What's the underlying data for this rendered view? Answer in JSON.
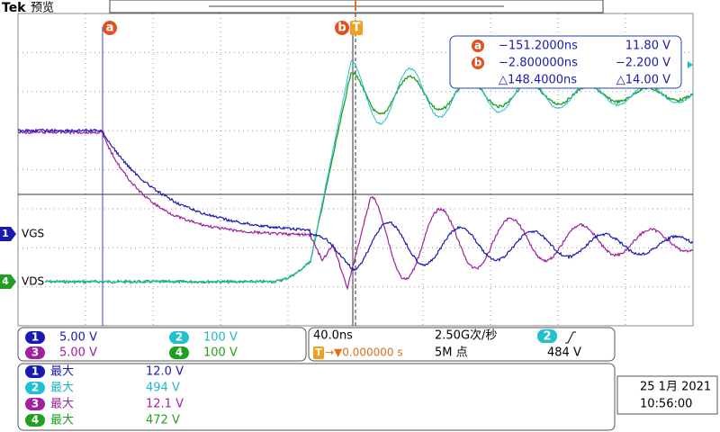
{
  "header": {
    "brand": "Tek",
    "mode": "预览"
  },
  "cursors": {
    "a": "a",
    "b": "b",
    "trigger": "T"
  },
  "readout": [
    {
      "marker": "a",
      "time": "−151.2000ns",
      "volt": "11.80 V"
    },
    {
      "marker": "b",
      "time": "−2.800000ns",
      "volt": "−2.200 V"
    },
    {
      "time": "△148.4000ns",
      "volt": "△14.00 V"
    }
  ],
  "channel_labels": [
    {
      "number": "1",
      "name": "VGS"
    },
    {
      "number": "4",
      "name": "VDS"
    }
  ],
  "vertical": [
    {
      "channel": "1",
      "scale": "5.00 V"
    },
    {
      "channel": "2",
      "scale": "100 V"
    },
    {
      "channel": "3",
      "scale": "5.00 V"
    },
    {
      "channel": "4",
      "scale": "100 V"
    }
  ],
  "horizontal": {
    "time_per_div": "40.0ns",
    "sample_rate": "2.50G次/秒",
    "position": "→▼0.000000 s",
    "record_length": "5M 点"
  },
  "trigger": {
    "source": "2",
    "level": "484 V"
  },
  "measurements": [
    {
      "channel": "1",
      "type": "最大",
      "value": "12.0 V"
    },
    {
      "channel": "2",
      "type": "最大",
      "value": "494 V"
    },
    {
      "channel": "3",
      "type": "最大",
      "value": "12.1 V"
    },
    {
      "channel": "4",
      "type": "最大",
      "value": "472 V"
    }
  ],
  "datetime": {
    "date": "25 1月 2021",
    "time": "10:56:00"
  }
}
